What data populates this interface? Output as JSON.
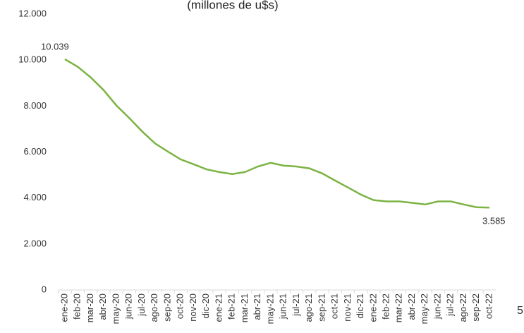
{
  "chart_data": {
    "type": "line",
    "title": "(millones de u$s)",
    "categories": [
      "ene-20",
      "feb-20",
      "mar-20",
      "abr-20",
      "may-20",
      "jun-20",
      "jul-20",
      "ago-20",
      "sep-20",
      "oct-20",
      "nov-20",
      "dic-20",
      "ene-21",
      "feb-21",
      "mar-21",
      "abr-21",
      "may-21",
      "jun-21",
      "jul-21",
      "ago-21",
      "sep-21",
      "oct-21",
      "nov-21",
      "dic-21",
      "ene-22",
      "feb-22",
      "mar-22",
      "abr-22",
      "may-22",
      "jun-22",
      "jul-22",
      "ago-22",
      "sep-22",
      "oct-22"
    ],
    "values": [
      10039,
      9710,
      9250,
      8700,
      8030,
      7480,
      6900,
      6380,
      6020,
      5680,
      5470,
      5250,
      5130,
      5040,
      5130,
      5370,
      5530,
      5410,
      5370,
      5290,
      5070,
      4760,
      4460,
      4150,
      3910,
      3850,
      3850,
      3790,
      3720,
      3850,
      3850,
      3720,
      3600,
      3585
    ],
    "value_labels": [
      "10.039",
      null,
      null,
      null,
      null,
      null,
      null,
      null,
      null,
      null,
      null,
      null,
      null,
      null,
      null,
      null,
      null,
      null,
      null,
      null,
      null,
      null,
      null,
      null,
      null,
      null,
      null,
      null,
      null,
      null,
      null,
      null,
      null,
      "3.585"
    ],
    "color": "#7cb342",
    "ylim": [
      0,
      12000
    ],
    "yticks": [
      0,
      {
        "value": 2000,
        "label": "2.000"
      },
      {
        "value": 4000,
        "label": "4.000"
      },
      {
        "value": 6000,
        "label": "6.000"
      },
      {
        "value": 8000,
        "label": "8.000"
      },
      {
        "value": 10000,
        "label": "10.000"
      },
      {
        "value": 12000,
        "label": "12.000"
      }
    ],
    "page_number": "5"
  }
}
